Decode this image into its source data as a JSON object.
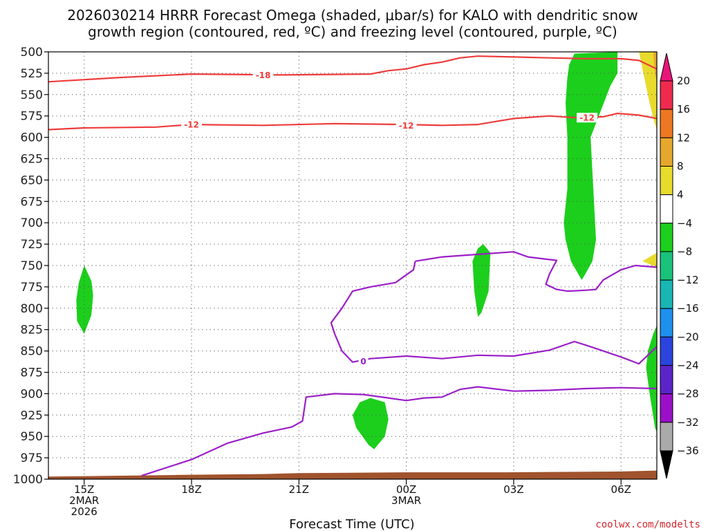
{
  "chart_data": {
    "type": "time-height",
    "title_lines": [
      "2026030214 HRRR Forecast Omega (shaded, μbar/s) for KALO with dendritic snow",
      "growth region (contoured, red, ºC) and freezing level (contoured, purple, ºC)"
    ],
    "xlabel": "Forecast Time (UTC)",
    "credit": "coolwx.com/modelts",
    "xlim": [
      14,
      31
    ],
    "ylim": [
      1000,
      500
    ],
    "y_ticks": [
      500,
      525,
      550,
      575,
      600,
      625,
      650,
      675,
      700,
      725,
      750,
      775,
      800,
      825,
      850,
      875,
      900,
      925,
      950,
      975,
      1000
    ],
    "x_ticks": [
      {
        "x": 15,
        "lines": [
          "15Z",
          "2MAR",
          "2026"
        ]
      },
      {
        "x": 18,
        "lines": [
          "18Z"
        ]
      },
      {
        "x": 21,
        "lines": [
          "21Z"
        ]
      },
      {
        "x": 24,
        "lines": [
          "00Z",
          "3MAR"
        ]
      },
      {
        "x": 27,
        "lines": [
          "03Z"
        ]
      },
      {
        "x": 30,
        "lines": [
          "06Z"
        ]
      }
    ],
    "grid": true,
    "colorbar": {
      "levels": [
        20,
        16,
        12,
        8,
        4,
        -4,
        -8,
        -12,
        -16,
        -20,
        -24,
        -28,
        -32,
        -36
      ],
      "colors": [
        "#ee2a4e",
        "#ee7722",
        "#e6a82c",
        "#e8db2c",
        "#ffffff",
        "#1ccf1c",
        "#19c27a",
        "#18b6b4",
        "#1e90ee",
        "#2a44dd",
        "#5b24c8",
        "#9a10c8",
        "#aaaaaa"
      ],
      "top_extend_color": "#e8157a",
      "bottom_extend_color": "#000000"
    },
    "omega_regions": [
      {
        "color": "#1ccf1c",
        "points": [
          [
            15.0,
            750
          ],
          [
            15.2,
            768
          ],
          [
            15.25,
            785
          ],
          [
            15.2,
            808
          ],
          [
            15.0,
            830
          ],
          [
            14.8,
            815
          ],
          [
            14.78,
            790
          ],
          [
            14.85,
            770
          ]
        ]
      },
      {
        "color": "#1ccf1c",
        "points": [
          [
            28.7,
            502
          ],
          [
            29.9,
            500
          ],
          [
            29.9,
            515
          ],
          [
            29.9,
            525
          ],
          [
            29.7,
            540
          ],
          [
            29.15,
            600
          ],
          [
            29.3,
            720
          ],
          [
            29.2,
            745
          ],
          [
            29.0,
            760
          ],
          [
            28.9,
            767
          ],
          [
            28.6,
            745
          ],
          [
            28.45,
            720
          ],
          [
            28.4,
            700
          ],
          [
            28.5,
            660
          ],
          [
            28.5,
            600
          ],
          [
            28.45,
            560
          ],
          [
            28.5,
            530
          ],
          [
            28.55,
            515
          ]
        ]
      },
      {
        "color": "#1ccf1c",
        "points": [
          [
            26.15,
            725
          ],
          [
            26.35,
            735
          ],
          [
            26.3,
            780
          ],
          [
            26.1,
            805
          ],
          [
            26.0,
            810
          ],
          [
            25.9,
            780
          ],
          [
            25.85,
            745
          ],
          [
            26.0,
            730
          ]
        ]
      },
      {
        "color": "#1ccf1c",
        "points": [
          [
            23.0,
            905
          ],
          [
            23.4,
            910
          ],
          [
            23.5,
            930
          ],
          [
            23.4,
            950
          ],
          [
            23.1,
            965
          ],
          [
            22.95,
            960
          ],
          [
            22.6,
            940
          ],
          [
            22.5,
            925
          ],
          [
            22.7,
            910
          ]
        ]
      },
      {
        "color": "#1ccf1c",
        "points": [
          [
            31.0,
            820
          ],
          [
            31.0,
            945
          ],
          [
            30.95,
            940
          ],
          [
            30.8,
            900
          ],
          [
            30.7,
            870
          ],
          [
            30.75,
            850
          ],
          [
            30.9,
            830
          ]
        ]
      },
      {
        "color": "#e8db2c",
        "points": [
          [
            31.0,
            500
          ],
          [
            31.0,
            590
          ],
          [
            30.95,
            585
          ],
          [
            30.8,
            560
          ],
          [
            30.55,
            510
          ],
          [
            30.5,
            500
          ]
        ]
      },
      {
        "color": "#e6a82c",
        "points": [
          [
            31.0,
            500
          ],
          [
            31.0,
            535
          ],
          [
            30.95,
            527
          ],
          [
            30.9,
            500
          ]
        ]
      },
      {
        "color": "#e8db2c",
        "points": [
          [
            31.0,
            735
          ],
          [
            31.0,
            752
          ],
          [
            30.6,
            745
          ]
        ]
      }
    ],
    "terrain": {
      "color": "#a0532d",
      "points": [
        [
          14.0,
          997
        ],
        [
          17.8,
          995
        ],
        [
          20.0,
          994
        ],
        [
          21.0,
          993
        ],
        [
          24.0,
          992
        ],
        [
          26.8,
          992
        ],
        [
          30.0,
          991
        ],
        [
          31.0,
          990
        ]
      ]
    },
    "red_contours": [
      {
        "label": "-18",
        "label_at": [
          20.0,
          527
        ],
        "points": [
          [
            14.0,
            535
          ],
          [
            16.0,
            530
          ],
          [
            18.0,
            526
          ],
          [
            20.5,
            527
          ],
          [
            23.0,
            526
          ],
          [
            23.5,
            522
          ],
          [
            24.0,
            520
          ],
          [
            24.5,
            515
          ],
          [
            25.0,
            512
          ],
          [
            25.5,
            507
          ],
          [
            26.0,
            505
          ],
          [
            27.0,
            506
          ],
          [
            28.0,
            507
          ],
          [
            29.0,
            508
          ],
          [
            30.0,
            508
          ],
          [
            30.5,
            510
          ],
          [
            31.0,
            520
          ]
        ]
      },
      {
        "label": "-12",
        "label_at": [
          18.0,
          585
        ],
        "points": [
          [
            14.0,
            591
          ],
          [
            15.0,
            589
          ],
          [
            17.0,
            588
          ],
          [
            18.0,
            585
          ],
          [
            20.0,
            586
          ],
          [
            22.0,
            584
          ],
          [
            24.0,
            585
          ],
          [
            25.0,
            586
          ],
          [
            26.0,
            585
          ],
          [
            27.0,
            578
          ],
          [
            28.0,
            575
          ],
          [
            28.7,
            577
          ],
          [
            29.5,
            576
          ],
          [
            29.9,
            572
          ],
          [
            30.5,
            574
          ],
          [
            31.0,
            578
          ]
        ]
      },
      {
        "label": "-12",
        "label_at": [
          24.0,
          586
        ],
        "points": []
      },
      {
        "label": "-12",
        "label_at": [
          29.05,
          577
        ],
        "points": []
      }
    ],
    "purple_contours": [
      {
        "label": "0",
        "label_at": [
          22.8,
          862
        ],
        "points": [
          [
            24.25,
            745
          ],
          [
            25.0,
            740
          ],
          [
            26.0,
            737
          ],
          [
            27.0,
            734
          ],
          [
            27.4,
            740
          ],
          [
            28.2,
            744
          ],
          [
            28.0,
            760
          ],
          [
            27.9,
            772
          ],
          [
            28.2,
            778
          ],
          [
            28.5,
            780
          ],
          [
            29.0,
            779
          ],
          [
            29.3,
            778
          ],
          [
            29.5,
            767
          ],
          [
            30.0,
            755
          ],
          [
            30.4,
            750
          ],
          [
            31.0,
            752
          ]
        ]
      },
      {
        "label": "",
        "label_at": null,
        "points": [
          [
            24.25,
            745
          ],
          [
            24.2,
            755
          ],
          [
            23.7,
            770
          ],
          [
            23.0,
            775
          ],
          [
            22.5,
            780
          ],
          [
            22.2,
            800
          ],
          [
            21.9,
            817
          ],
          [
            22.0,
            830
          ],
          [
            22.2,
            850
          ],
          [
            22.5,
            863
          ],
          [
            23.0,
            859
          ],
          [
            24.0,
            856
          ],
          [
            25.0,
            859
          ],
          [
            26.0,
            855
          ],
          [
            27.0,
            856
          ],
          [
            28.0,
            849
          ],
          [
            28.7,
            839
          ],
          [
            29.0,
            843
          ],
          [
            29.5,
            850
          ],
          [
            30.0,
            857
          ],
          [
            30.5,
            865
          ],
          [
            31.0,
            845
          ]
        ]
      },
      {
        "label": "",
        "label_at": null,
        "points": [
          [
            16.6,
            996
          ],
          [
            18.0,
            977
          ],
          [
            19.0,
            958
          ],
          [
            20.0,
            946
          ],
          [
            20.8,
            939
          ],
          [
            21.1,
            932
          ],
          [
            21.2,
            904
          ],
          [
            22.0,
            900
          ],
          [
            22.8,
            901
          ],
          [
            23.5,
            905
          ],
          [
            24.0,
            908
          ],
          [
            24.5,
            905
          ],
          [
            25.0,
            904
          ],
          [
            25.5,
            895
          ],
          [
            26.0,
            892
          ],
          [
            27.0,
            897
          ],
          [
            28.0,
            896
          ],
          [
            29.0,
            894
          ],
          [
            30.0,
            893
          ],
          [
            31.0,
            894
          ]
        ]
      }
    ]
  }
}
